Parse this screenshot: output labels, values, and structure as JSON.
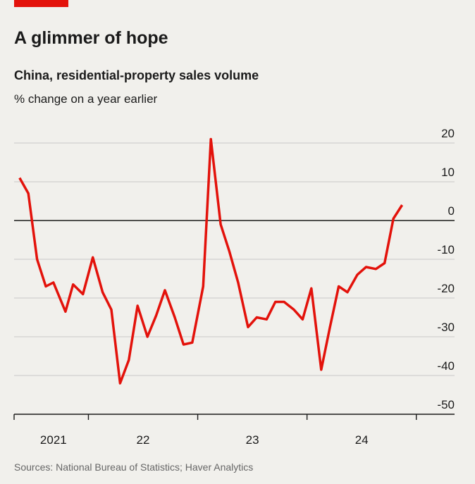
{
  "chart_data": {
    "type": "line",
    "title": "A glimmer of hope",
    "subtitle": "China, residential-property sales volume",
    "y_label": "% change on a year earlier",
    "source": "Sources: National Bureau of Statistics; Haver Analytics",
    "x": [
      2021.37,
      2021.45,
      2021.53,
      2021.61,
      2021.68,
      2021.79,
      2021.86,
      2021.95,
      2022.04,
      2022.13,
      2022.21,
      2022.29,
      2022.37,
      2022.45,
      2022.54,
      2022.62,
      2022.7,
      2022.79,
      2022.87,
      2022.95,
      2023.05,
      2023.12,
      2023.21,
      2023.29,
      2023.37,
      2023.46,
      2023.54,
      2023.63,
      2023.71,
      2023.79,
      2023.88,
      2023.96,
      2024.04,
      2024.13,
      2024.21,
      2024.29,
      2024.37,
      2024.46,
      2024.54,
      2024.63,
      2024.71,
      2024.79,
      2024.87
    ],
    "series": [
      {
        "color": "#e3120b",
        "values": [
          11,
          7,
          -10,
          -17,
          -16,
          -23.5,
          -16.5,
          -19,
          -9.5,
          -18.5,
          -23,
          -42,
          -36,
          -22,
          -30,
          -24.5,
          -18,
          -25,
          -32,
          -31.5,
          -17,
          21,
          -1,
          -8,
          -16,
          -27.5,
          -25,
          -25.5,
          -21,
          -21,
          -23,
          -25.5,
          -17.5,
          -38.5,
          -27.5,
          -17,
          -18.5,
          -14,
          -12,
          -12.5,
          -11,
          0.5,
          4
        ]
      }
    ],
    "xlim": [
      2021.32,
      2025.35
    ],
    "xticks": [
      {
        "value": 2021.68,
        "label": "2021"
      },
      {
        "value": 2022.5,
        "label": "22"
      },
      {
        "value": 2023.5,
        "label": "23"
      },
      {
        "value": 2024.5,
        "label": "24"
      }
    ],
    "year_boundaries": [
      2022,
      2023,
      2024,
      2025
    ],
    "ylim": [
      -50,
      20
    ],
    "yticks": [
      20,
      10,
      0,
      -10,
      -20,
      -30,
      -40,
      -50
    ],
    "grid": true
  }
}
